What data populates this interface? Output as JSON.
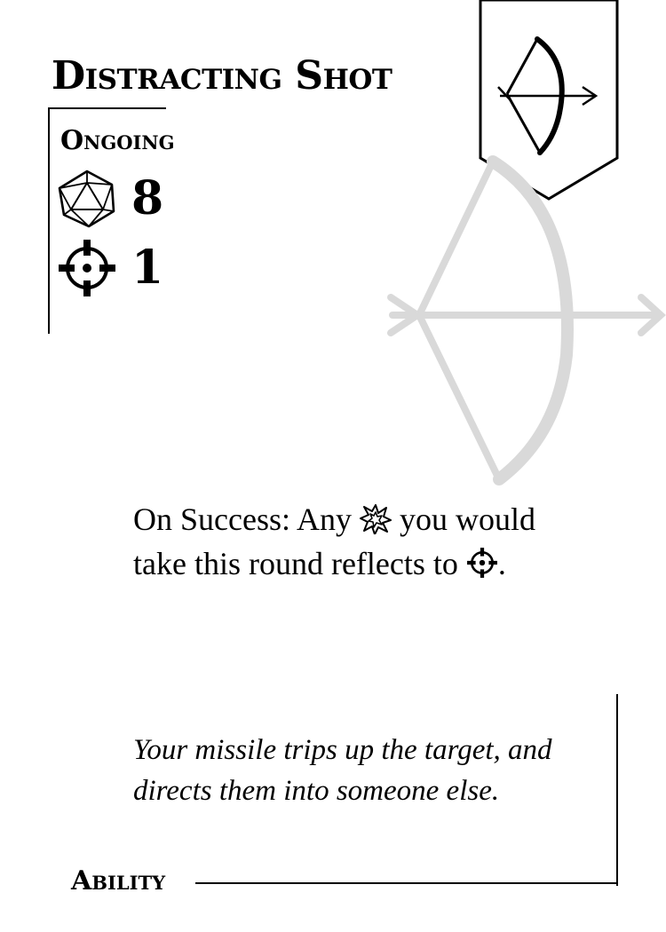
{
  "card": {
    "title": "Distracting Shot",
    "type": "Ongoing",
    "difficulty": "8",
    "target": "1",
    "effect": {
      "before": "On Success: Any",
      "middle": "you would",
      "line2": "take this round reflects to",
      "after": "."
    },
    "flavor": {
      "line1": "Your missile trips up the target, and",
      "line2": "directs them into someone else."
    },
    "category": "Ability"
  },
  "icons": {
    "banner": "bow-and-arrow-icon",
    "watermark": "bow-and-arrow-icon",
    "difficulty": "d20-die-icon",
    "target": "crosshair-icon",
    "damage": "burst-icon"
  },
  "colors": {
    "ink": "#000000",
    "watermark": "#d9d9d9",
    "background": "#ffffff"
  }
}
